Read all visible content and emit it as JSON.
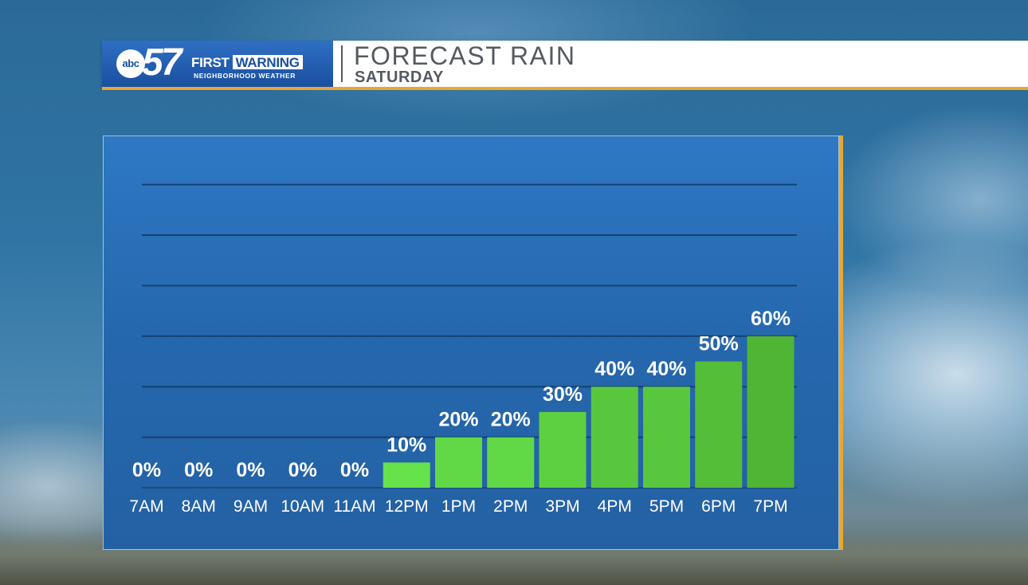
{
  "header": {
    "brand_abc": "abc",
    "brand_number": "57",
    "brand_first": "FIRST",
    "brand_warning": "WARNING",
    "brand_sub": "NEIGHBORHOOD WEATHER",
    "title": "FORECAST RAIN",
    "subtitle": "SATURDAY"
  },
  "colors": {
    "accent": "#e8a72e",
    "brand_blue": "#1a4fa0",
    "bar_light": "#66e24a",
    "bar_dark": "#4fb534",
    "gridline": "#123a66"
  },
  "chart_data": {
    "type": "bar",
    "title": "FORECAST RAIN",
    "subtitle": "SATURDAY",
    "xlabel": "",
    "ylabel": "",
    "categories": [
      "7AM",
      "8AM",
      "9AM",
      "10AM",
      "11AM",
      "12PM",
      "1PM",
      "2PM",
      "3PM",
      "4PM",
      "5PM",
      "6PM",
      "7PM"
    ],
    "values": [
      0,
      0,
      0,
      0,
      0,
      10,
      20,
      20,
      30,
      40,
      40,
      50,
      60
    ],
    "value_labels": [
      "0%",
      "0%",
      "0%",
      "0%",
      "0%",
      "10%",
      "20%",
      "20%",
      "30%",
      "40%",
      "40%",
      "50%",
      "60%"
    ],
    "ylim": [
      0,
      120
    ],
    "grid": true,
    "legend": "none"
  }
}
